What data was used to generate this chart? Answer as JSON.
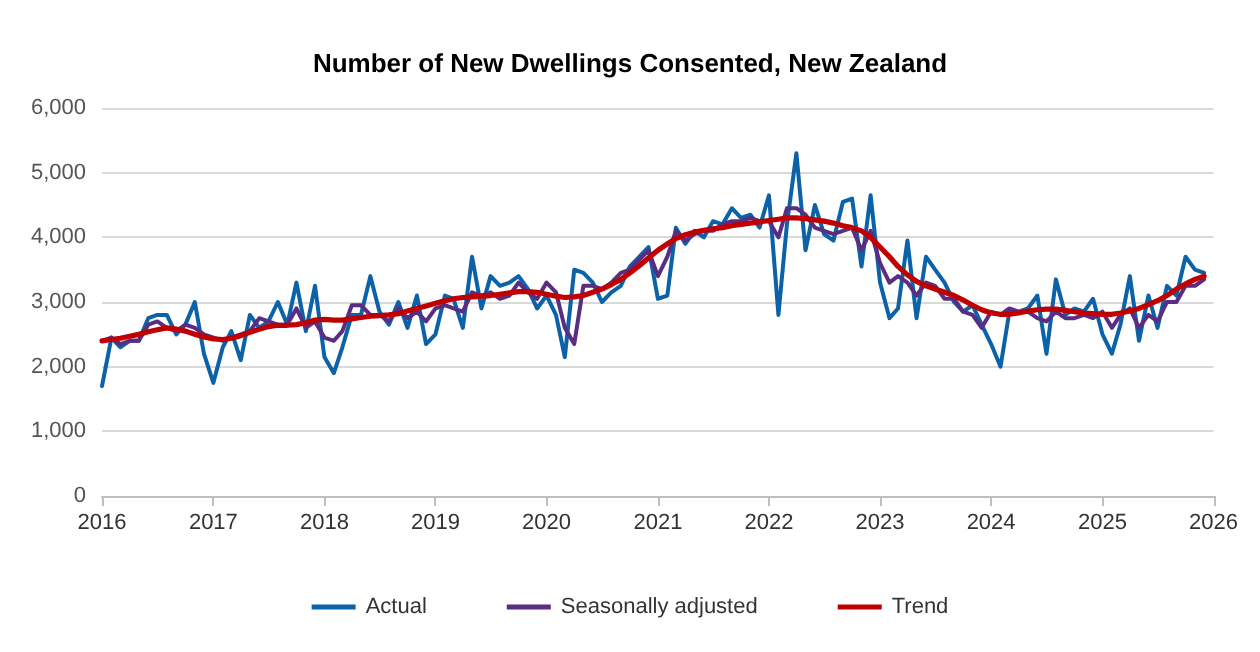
{
  "chart_data": {
    "type": "line",
    "title": "Number of New Dwellings Consented, New Zealand",
    "x": [
      "2016-01",
      "2016-02",
      "2016-03",
      "2016-04",
      "2016-05",
      "2016-06",
      "2016-07",
      "2016-08",
      "2016-09",
      "2016-10",
      "2016-11",
      "2016-12",
      "2017-01",
      "2017-02",
      "2017-03",
      "2017-04",
      "2017-05",
      "2017-06",
      "2017-07",
      "2017-08",
      "2017-09",
      "2017-10",
      "2017-11",
      "2017-12",
      "2018-01",
      "2018-02",
      "2018-03",
      "2018-04",
      "2018-05",
      "2018-06",
      "2018-07",
      "2018-08",
      "2018-09",
      "2018-10",
      "2018-11",
      "2018-12",
      "2019-01",
      "2019-02",
      "2019-03",
      "2019-04",
      "2019-05",
      "2019-06",
      "2019-07",
      "2019-08",
      "2019-09",
      "2019-10",
      "2019-11",
      "2019-12",
      "2020-01",
      "2020-02",
      "2020-03",
      "2020-04",
      "2020-05",
      "2020-06",
      "2020-07",
      "2020-08",
      "2020-09",
      "2020-10",
      "2020-11",
      "2020-12",
      "2021-01",
      "2021-02",
      "2021-03",
      "2021-04",
      "2021-05",
      "2021-06",
      "2021-07",
      "2021-08",
      "2021-09",
      "2021-10",
      "2021-11",
      "2021-12",
      "2022-01",
      "2022-02",
      "2022-03",
      "2022-04",
      "2022-05",
      "2022-06",
      "2022-07",
      "2022-08",
      "2022-09",
      "2022-10",
      "2022-11",
      "2022-12",
      "2023-01",
      "2023-02",
      "2023-03",
      "2023-04",
      "2023-05",
      "2023-06",
      "2023-07",
      "2023-08",
      "2023-09",
      "2023-10",
      "2023-11",
      "2023-12",
      "2024-01",
      "2024-02",
      "2024-03",
      "2024-04",
      "2024-05",
      "2024-06",
      "2024-07",
      "2024-08",
      "2024-09",
      "2024-10",
      "2024-11",
      "2024-12",
      "2025-01",
      "2025-02",
      "2025-03",
      "2025-04",
      "2025-05",
      "2025-06",
      "2025-07",
      "2025-08",
      "2025-09",
      "2025-10",
      "2025-11",
      "2025-12"
    ],
    "series": [
      {
        "name": "Actual",
        "color": "#0b62a8",
        "values": [
          1700,
          2450,
          2300,
          2400,
          2400,
          2750,
          2800,
          2800,
          2500,
          2650,
          3000,
          2200,
          1750,
          2300,
          2550,
          2100,
          2800,
          2600,
          2700,
          3000,
          2650,
          3300,
          2550,
          3250,
          2150,
          1900,
          2300,
          2800,
          2800,
          3400,
          2850,
          2650,
          3000,
          2600,
          3100,
          2350,
          2500,
          3100,
          3050,
          2600,
          3700,
          2900,
          3400,
          3250,
          3300,
          3400,
          3200,
          2900,
          3100,
          2800,
          2150,
          3500,
          3450,
          3300,
          3000,
          3150,
          3250,
          3550,
          3700,
          3850,
          3050,
          3100,
          4150,
          3900,
          4100,
          4000,
          4250,
          4200,
          4450,
          4300,
          4350,
          4150,
          4650,
          2800,
          4200,
          5300,
          3800,
          4500,
          4050,
          3950,
          4550,
          4600,
          3550,
          4650,
          3300,
          2750,
          2900,
          3950,
          2750,
          3700,
          3500,
          3300,
          3000,
          2850,
          2950,
          2650,
          2350,
          2000,
          2850,
          2850,
          2900,
          3100,
          2200,
          3350,
          2800,
          2900,
          2850,
          3050,
          2500,
          2200,
          2650,
          3400,
          2400,
          3100,
          2600,
          3250,
          3100,
          3700,
          3500,
          3450
        ]
      },
      {
        "name": "Seasonally adjusted",
        "color": "#5a2d82",
        "values": [
          2400,
          2450,
          2350,
          2400,
          2400,
          2650,
          2700,
          2600,
          2550,
          2650,
          2600,
          2500,
          2450,
          2400,
          2450,
          2500,
          2550,
          2750,
          2700,
          2650,
          2650,
          2900,
          2600,
          2700,
          2450,
          2400,
          2550,
          2950,
          2950,
          2800,
          2800,
          2700,
          2900,
          2750,
          2850,
          2700,
          2900,
          2950,
          2900,
          2850,
          3150,
          3100,
          3150,
          3050,
          3100,
          3300,
          3150,
          3050,
          3300,
          3150,
          2600,
          2350,
          3250,
          3250,
          3200,
          3300,
          3450,
          3500,
          3650,
          3800,
          3400,
          3700,
          4100,
          3950,
          4050,
          4100,
          4100,
          4200,
          4250,
          4250,
          4300,
          4250,
          4250,
          4000,
          4450,
          4450,
          4350,
          4150,
          4100,
          4050,
          4100,
          4150,
          3800,
          4100,
          3600,
          3300,
          3400,
          3300,
          3100,
          3300,
          3250,
          3050,
          3050,
          2850,
          2800,
          2600,
          2850,
          2800,
          2900,
          2850,
          2850,
          2750,
          2700,
          2850,
          2750,
          2750,
          2800,
          2750,
          2850,
          2600,
          2800,
          2900,
          2600,
          2800,
          2700,
          3000,
          3000,
          3250,
          3250,
          3350
        ]
      },
      {
        "name": "Trend",
        "color": "#c00000",
        "values": [
          2400,
          2420,
          2440,
          2470,
          2500,
          2540,
          2570,
          2600,
          2580,
          2550,
          2500,
          2460,
          2430,
          2420,
          2440,
          2480,
          2530,
          2580,
          2620,
          2640,
          2640,
          2650,
          2680,
          2720,
          2730,
          2720,
          2720,
          2740,
          2760,
          2780,
          2790,
          2800,
          2820,
          2860,
          2900,
          2940,
          2980,
          3020,
          3050,
          3070,
          3080,
          3090,
          3100,
          3120,
          3140,
          3160,
          3160,
          3150,
          3120,
          3090,
          3070,
          3080,
          3100,
          3150,
          3200,
          3270,
          3350,
          3450,
          3560,
          3680,
          3800,
          3900,
          3980,
          4040,
          4080,
          4110,
          4130,
          4150,
          4180,
          4200,
          4220,
          4240,
          4260,
          4280,
          4300,
          4300,
          4290,
          4270,
          4250,
          4220,
          4180,
          4150,
          4100,
          4000,
          3850,
          3700,
          3550,
          3420,
          3320,
          3250,
          3200,
          3150,
          3100,
          3030,
          2950,
          2880,
          2830,
          2810,
          2810,
          2830,
          2860,
          2880,
          2890,
          2890,
          2870,
          2850,
          2830,
          2820,
          2810,
          2810,
          2830,
          2860,
          2900,
          2960,
          3020,
          3100,
          3200,
          3280,
          3350,
          3400
        ]
      }
    ],
    "xlim": [
      "2016",
      "2026"
    ],
    "xticks": [
      "2016",
      "2017",
      "2018",
      "2019",
      "2020",
      "2021",
      "2022",
      "2023",
      "2024",
      "2025",
      "2026"
    ],
    "ylim": [
      0,
      6000
    ],
    "yticks": [
      0,
      {
        "value": 1000,
        "label": "1,000"
      },
      {
        "value": 2000,
        "label": "2,000"
      },
      {
        "value": 3000,
        "label": "3,000"
      },
      {
        "value": 4000,
        "label": "4,000"
      },
      {
        "value": 5000,
        "label": "5,000"
      },
      {
        "value": 6000,
        "label": "6,000"
      }
    ],
    "grid": "y",
    "legend": "bottom",
    "marker": "none",
    "line_style": "solid"
  }
}
